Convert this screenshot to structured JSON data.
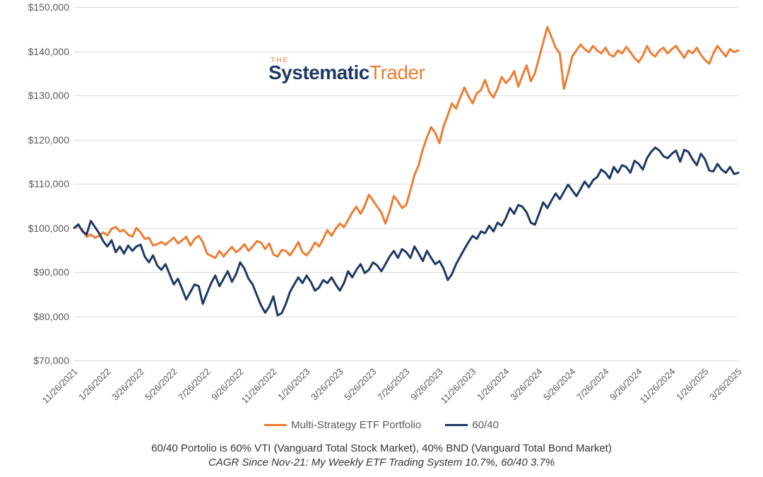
{
  "chart": {
    "type": "line",
    "background_color": "#ffffff",
    "grid_color": "#d9d9d9",
    "axis_color": "#a0a0a0",
    "label_color": "#595959",
    "label_fontsize": 14,
    "ylim": [
      70000,
      150000
    ],
    "ytick_step": 10000,
    "ytick_labels": [
      "$70,000",
      "$80,000",
      "$90,000",
      "$100,000",
      "$110,000",
      "$120,000",
      "$130,000",
      "$140,000",
      "$150,000"
    ],
    "x_labels": [
      "11/26/2021",
      "1/26/2022",
      "3/26/2022",
      "5/26/2022",
      "7/26/2022",
      "9/26/2022",
      "11/26/2022",
      "1/26/2023",
      "3/26/2023",
      "5/26/2023",
      "7/26/2023",
      "9/26/2023",
      "11/26/2023",
      "1/26/2024",
      "3/26/2024",
      "5/26/2024",
      "7/26/2024",
      "9/26/2024",
      "11/26/2024",
      "1/26/2025",
      "3/26/2025"
    ],
    "x_label_rotation": -45,
    "line_width": 3,
    "series": [
      {
        "name": "Multi-Strategy ETF Portfolio",
        "color": "#ed7d31",
        "data": [
          100000,
          100500,
          99500,
          98000,
          98500,
          97800,
          98200,
          99000,
          98300,
          99800,
          100200,
          99200,
          99500,
          98500,
          98000,
          100000,
          99000,
          97500,
          97800,
          96000,
          96300,
          96800,
          96200,
          97000,
          97800,
          96500,
          97200,
          98000,
          96000,
          97500,
          98200,
          96800,
          94200,
          93700,
          93200,
          94800,
          93500,
          94700,
          95700,
          94500,
          95200,
          96300,
          94800,
          95800,
          97000,
          96700,
          95200,
          96500,
          94000,
          93500,
          95000,
          94800,
          93800,
          95200,
          96800,
          94500,
          93800,
          95000,
          96700,
          95800,
          97500,
          99500,
          98200,
          99800,
          101000,
          100200,
          101800,
          103500,
          104800,
          103200,
          105000,
          107500,
          106200,
          104800,
          103500,
          101000,
          103800,
          107200,
          106000,
          104500,
          105200,
          108500,
          112000,
          114200,
          117800,
          120500,
          122800,
          121500,
          119200,
          123000,
          125500,
          128200,
          127000,
          129500,
          131800,
          129800,
          128200,
          130500,
          131200,
          133500,
          130800,
          129500,
          131500,
          134200,
          132800,
          133800,
          135500,
          132000,
          134500,
          136800,
          133200,
          135000,
          138500,
          142000,
          145500,
          143200,
          140800,
          139500,
          131500,
          135000,
          138800,
          140200,
          141500,
          140500,
          139800,
          141200,
          140200,
          139500,
          140800,
          139200,
          138800,
          140200,
          139500,
          141000,
          139800,
          138500,
          137500,
          139000,
          141200,
          139500,
          138800,
          140200,
          140800,
          139500,
          140500,
          141200,
          139800,
          138500,
          140200,
          139500,
          140800,
          139200,
          138000,
          137200,
          139500,
          141200,
          140000,
          138800,
          140500,
          139800,
          140200
        ]
      },
      {
        "name": "60/40",
        "color": "#1f3864",
        "data": [
          100000,
          100800,
          99200,
          98500,
          101600,
          100200,
          98800,
          97000,
          95800,
          97200,
          94500,
          95800,
          94200,
          96000,
          94800,
          95800,
          96200,
          93500,
          92200,
          93800,
          91500,
          90500,
          91800,
          89500,
          87200,
          88500,
          86200,
          83800,
          85500,
          87200,
          86800,
          82800,
          85200,
          87500,
          89200,
          86800,
          88500,
          90200,
          87800,
          89500,
          92200,
          90800,
          88500,
          87200,
          84800,
          82500,
          80800,
          82200,
          84500,
          80200,
          80700,
          82800,
          85500,
          87200,
          88800,
          87500,
          89200,
          87800,
          85800,
          86500,
          88200,
          87500,
          88800,
          87200,
          85800,
          87500,
          90200,
          88800,
          90500,
          91800,
          89800,
          90500,
          92200,
          91500,
          90200,
          91800,
          93500,
          94800,
          93200,
          95200,
          94500,
          93200,
          95800,
          94200,
          92500,
          94800,
          93200,
          91800,
          92500,
          90800,
          88200,
          89500,
          91800,
          93500,
          95200,
          96800,
          98200,
          97500,
          99200,
          98800,
          100500,
          99200,
          101200,
          100500,
          102200,
          104500,
          103200,
          105200,
          104800,
          103500,
          101200,
          100700,
          103200,
          105800,
          104500,
          106200,
          107800,
          106500,
          108200,
          109800,
          108500,
          107200,
          108800,
          110500,
          109200,
          110800,
          111500,
          113200,
          112500,
          111200,
          113800,
          112500,
          114200,
          113800,
          112500,
          115200,
          114500,
          113200,
          115800,
          117200,
          118200,
          117500,
          116200,
          115800,
          116800,
          117500,
          115000,
          117700,
          117200,
          115500,
          114200,
          116800,
          115500,
          113000,
          112800,
          114500,
          113200,
          112500,
          113800,
          112200,
          112500
        ]
      }
    ],
    "legend": {
      "position": "bottom",
      "items": [
        "Multi-Strategy ETF Portfolio",
        "60/40"
      ]
    },
    "logo": {
      "the": "THE",
      "part1": "Systematic",
      "part2": "Trader",
      "color1": "#1f3864",
      "color2": "#ed7d31"
    }
  },
  "caption": {
    "line1": "60/40 Portolio is 60% VTI (Vanguard Total Stock Market), 40% BND (Vanguard Total Bond Market)",
    "line2": "CAGR Since Nov-21: My Weekly ETF Trading System 10.7%, 60/40 3.7%",
    "color": "#333333",
    "fontsize": 15
  }
}
